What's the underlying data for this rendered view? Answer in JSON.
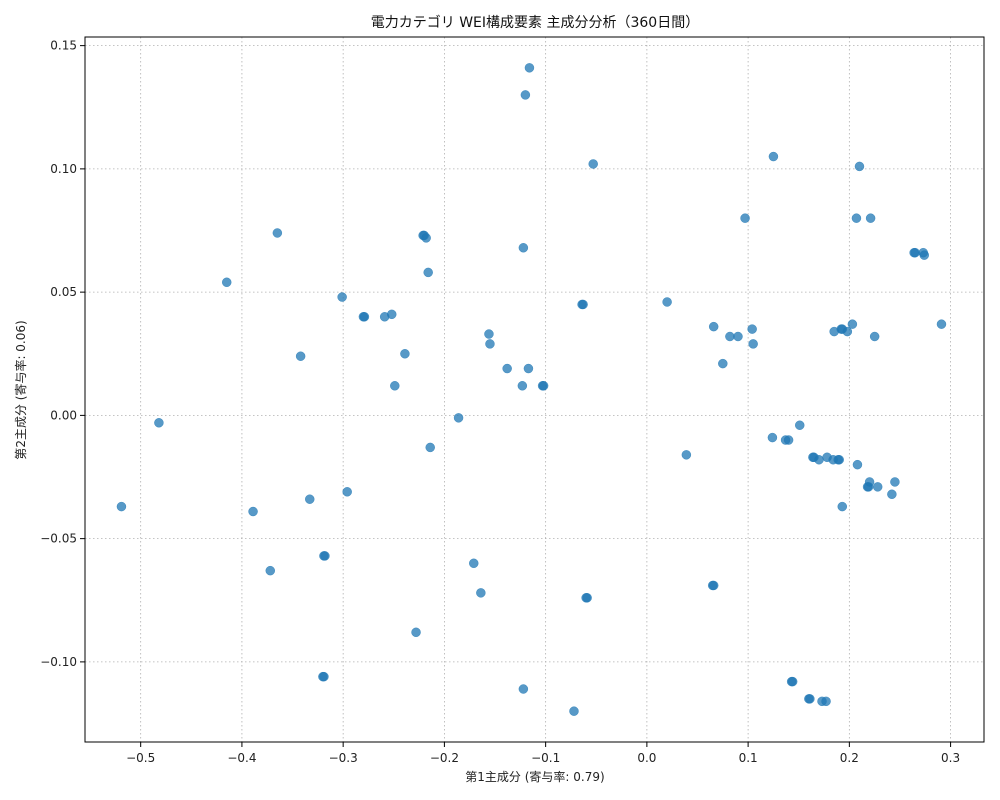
{
  "chart_data": {
    "type": "scatter",
    "title": "電力カテゴリ WEI構成要素 主成分分析（360日間）",
    "xlabel": "第1主成分 (寄与率: 0.79)",
    "ylabel": "第2主成分 (寄与率: 0.06)",
    "xlim": [
      -0.555,
      0.333
    ],
    "ylim": [
      -0.1325,
      0.1535
    ],
    "xticks": [
      -0.5,
      -0.4,
      -0.3,
      -0.2,
      -0.1,
      0.0,
      0.1,
      0.2,
      0.3
    ],
    "xtick_labels": [
      "−0.5",
      "−0.4",
      "−0.3",
      "−0.2",
      "−0.1",
      "0.0",
      "0.1",
      "0.2",
      "0.3"
    ],
    "yticks": [
      -0.1,
      -0.05,
      0.0,
      0.05,
      0.1,
      0.15
    ],
    "ytick_labels": [
      "−0.10",
      "−0.05",
      "0.00",
      "0.05",
      "0.10",
      "0.15"
    ],
    "grid": true,
    "grid_style": "dotted",
    "marker_color": "#1f77b4",
    "marker_opacity": 0.75,
    "points": [
      {
        "x": -0.519,
        "y": -0.037
      },
      {
        "x": -0.482,
        "y": -0.003
      },
      {
        "x": -0.415,
        "y": 0.054
      },
      {
        "x": -0.389,
        "y": -0.039
      },
      {
        "x": -0.372,
        "y": -0.063
      },
      {
        "x": -0.365,
        "y": 0.074
      },
      {
        "x": -0.342,
        "y": 0.024
      },
      {
        "x": -0.333,
        "y": -0.034
      },
      {
        "x": -0.319,
        "y": -0.057
      },
      {
        "x": -0.318,
        "y": -0.057
      },
      {
        "x": -0.32,
        "y": -0.106
      },
      {
        "x": -0.319,
        "y": -0.106
      },
      {
        "x": -0.301,
        "y": 0.048
      },
      {
        "x": -0.296,
        "y": -0.031
      },
      {
        "x": -0.279,
        "y": 0.04
      },
      {
        "x": -0.28,
        "y": 0.04
      },
      {
        "x": -0.259,
        "y": 0.04
      },
      {
        "x": -0.252,
        "y": 0.041
      },
      {
        "x": -0.249,
        "y": 0.012
      },
      {
        "x": -0.239,
        "y": 0.025
      },
      {
        "x": -0.228,
        "y": -0.088
      },
      {
        "x": -0.221,
        "y": 0.073
      },
      {
        "x": -0.22,
        "y": 0.073
      },
      {
        "x": -0.218,
        "y": 0.072
      },
      {
        "x": -0.216,
        "y": 0.058
      },
      {
        "x": -0.214,
        "y": -0.013
      },
      {
        "x": -0.186,
        "y": -0.001
      },
      {
        "x": -0.171,
        "y": -0.06
      },
      {
        "x": -0.164,
        "y": -0.072
      },
      {
        "x": -0.156,
        "y": 0.033
      },
      {
        "x": -0.155,
        "y": 0.029
      },
      {
        "x": -0.138,
        "y": 0.019
      },
      {
        "x": -0.123,
        "y": 0.012
      },
      {
        "x": -0.122,
        "y": 0.068
      },
      {
        "x": -0.122,
        "y": -0.111
      },
      {
        "x": -0.12,
        "y": 0.13
      },
      {
        "x": -0.117,
        "y": 0.019
      },
      {
        "x": -0.116,
        "y": 0.141
      },
      {
        "x": -0.103,
        "y": 0.012
      },
      {
        "x": -0.102,
        "y": 0.012
      },
      {
        "x": -0.072,
        "y": -0.12
      },
      {
        "x": -0.064,
        "y": 0.045
      },
      {
        "x": -0.063,
        "y": 0.045
      },
      {
        "x": -0.06,
        "y": -0.074
      },
      {
        "x": -0.059,
        "y": -0.074
      },
      {
        "x": -0.053,
        "y": 0.102
      },
      {
        "x": 0.02,
        "y": 0.046
      },
      {
        "x": 0.039,
        "y": -0.016
      },
      {
        "x": 0.065,
        "y": -0.069
      },
      {
        "x": 0.066,
        "y": -0.069
      },
      {
        "x": 0.066,
        "y": 0.036
      },
      {
        "x": 0.075,
        "y": 0.021
      },
      {
        "x": 0.082,
        "y": 0.032
      },
      {
        "x": 0.09,
        "y": 0.032
      },
      {
        "x": 0.097,
        "y": 0.08
      },
      {
        "x": 0.104,
        "y": 0.035
      },
      {
        "x": 0.105,
        "y": 0.029
      },
      {
        "x": 0.124,
        "y": -0.009
      },
      {
        "x": 0.125,
        "y": 0.105
      },
      {
        "x": 0.137,
        "y": -0.01
      },
      {
        "x": 0.14,
        "y": -0.01
      },
      {
        "x": 0.143,
        "y": -0.108
      },
      {
        "x": 0.144,
        "y": -0.108
      },
      {
        "x": 0.151,
        "y": -0.004
      },
      {
        "x": 0.16,
        "y": -0.115
      },
      {
        "x": 0.161,
        "y": -0.115
      },
      {
        "x": 0.164,
        "y": -0.017
      },
      {
        "x": 0.165,
        "y": -0.017
      },
      {
        "x": 0.17,
        "y": -0.018
      },
      {
        "x": 0.173,
        "y": -0.116
      },
      {
        "x": 0.177,
        "y": -0.116
      },
      {
        "x": 0.178,
        "y": -0.017
      },
      {
        "x": 0.184,
        "y": -0.018
      },
      {
        "x": 0.185,
        "y": 0.034
      },
      {
        "x": 0.189,
        "y": -0.018
      },
      {
        "x": 0.19,
        "y": -0.018
      },
      {
        "x": 0.192,
        "y": 0.035
      },
      {
        "x": 0.193,
        "y": 0.035
      },
      {
        "x": 0.193,
        "y": -0.037
      },
      {
        "x": 0.198,
        "y": 0.034
      },
      {
        "x": 0.203,
        "y": 0.037
      },
      {
        "x": 0.207,
        "y": 0.08
      },
      {
        "x": 0.208,
        "y": -0.02
      },
      {
        "x": 0.21,
        "y": 0.101
      },
      {
        "x": 0.218,
        "y": -0.029
      },
      {
        "x": 0.219,
        "y": -0.029
      },
      {
        "x": 0.22,
        "y": -0.027
      },
      {
        "x": 0.221,
        "y": 0.08
      },
      {
        "x": 0.225,
        "y": 0.032
      },
      {
        "x": 0.228,
        "y": -0.029
      },
      {
        "x": 0.242,
        "y": -0.032
      },
      {
        "x": 0.245,
        "y": -0.027
      },
      {
        "x": 0.264,
        "y": 0.066
      },
      {
        "x": 0.265,
        "y": 0.066
      },
      {
        "x": 0.273,
        "y": 0.066
      },
      {
        "x": 0.274,
        "y": 0.065
      },
      {
        "x": 0.291,
        "y": 0.037
      }
    ]
  }
}
